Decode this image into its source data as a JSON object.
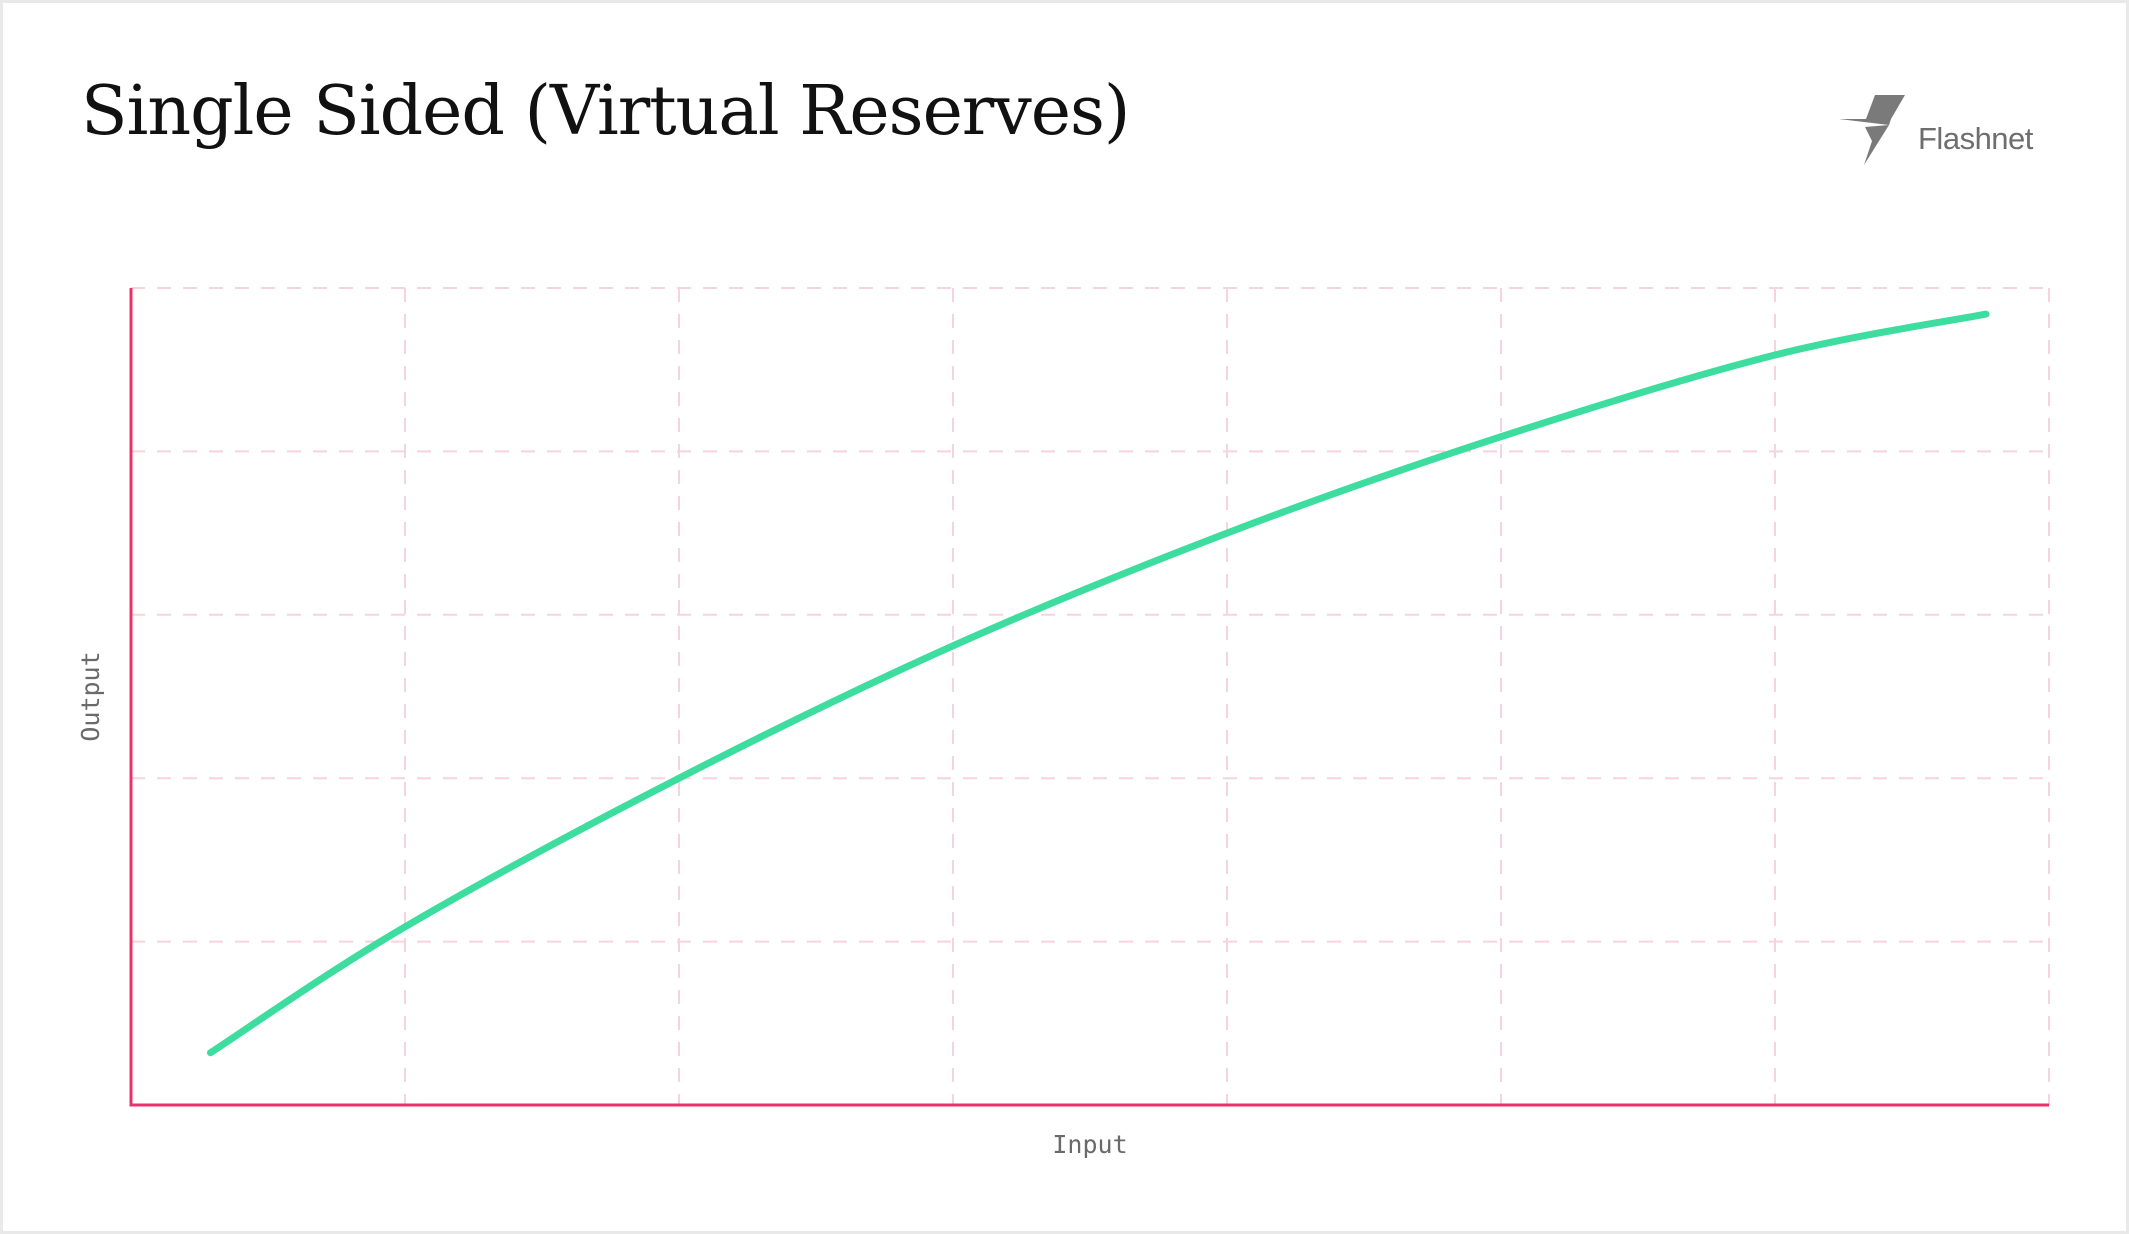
{
  "header": {
    "title": "Single Sided (Virtual Reserves)",
    "brand_name": "Flashnet",
    "brand_icon": "flashnet-lightning-logo"
  },
  "colors": {
    "curve": "#3ddc9f",
    "axis": "#e8326b",
    "grid": "#f6d3dd",
    "text": "#111111",
    "muted": "#6a6a6a"
  },
  "chart_data": {
    "type": "line",
    "title": "Single Sided (Virtual Reserves)",
    "xlabel": "Input",
    "ylabel": "Output",
    "xlim": [
      0,
      7
    ],
    "ylim": [
      0,
      5
    ],
    "grid": true,
    "tick_labels_shown": false,
    "series": [
      {
        "x": [
          0.29,
          1.0,
          2.0,
          3.0,
          4.0,
          5.0,
          6.0,
          6.77
        ],
        "y": [
          0.32,
          1.09,
          2.0,
          2.81,
          3.5,
          4.09,
          4.59,
          4.84
        ]
      }
    ]
  }
}
